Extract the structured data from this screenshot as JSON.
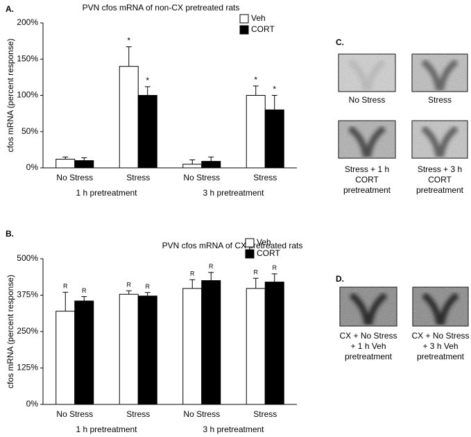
{
  "chart_data": [
    {
      "type": "bar",
      "label": "A.",
      "title": "PVN cfos mRNA of non-CX pretreated rats",
      "ylabel": "cfos mRNA (percent response)",
      "categories": [
        "No Stress",
        "Stress",
        "No Stress",
        "Stress"
      ],
      "group_labels": [
        "1 h pretreatment",
        "3 h pretreatment"
      ],
      "series": [
        {
          "name": "Veh",
          "color": "#ffffff",
          "edgecolor": "#000000",
          "values": [
            12,
            140,
            5,
            100
          ],
          "errors": [
            3,
            27,
            6,
            13
          ],
          "annotations": [
            null,
            "*",
            null,
            "*"
          ]
        },
        {
          "name": "CORT",
          "color": "#000000",
          "edgecolor": "#000000",
          "values": [
            10,
            100,
            9,
            80
          ],
          "errors": [
            4,
            12,
            6,
            20
          ],
          "annotations": [
            null,
            "*",
            null,
            "*"
          ]
        }
      ],
      "ylim": [
        0,
        200
      ],
      "yticks": [
        {
          "value": 0,
          "label": "0%"
        },
        {
          "value": 50,
          "label": "50%"
        },
        {
          "value": 100,
          "label": "100%"
        },
        {
          "value": 150,
          "label": "150%"
        },
        {
          "value": 200,
          "label": "200%"
        }
      ],
      "legend": "upper right"
    },
    {
      "type": "bar",
      "label": "B.",
      "title": "PVN cfos mRNA of CX pretreated rats",
      "ylabel": "cfos mRNA (percent response)",
      "categories": [
        "No Stress",
        "Stress",
        "No Stress",
        "Stress"
      ],
      "group_labels": [
        "1 h pretreatment",
        "3 h pretreatment"
      ],
      "series": [
        {
          "name": "Veh",
          "color": "#ffffff",
          "edgecolor": "#000000",
          "values": [
            320,
            378,
            398,
            398
          ],
          "errors": [
            65,
            12,
            30,
            35
          ],
          "annotations": [
            "R",
            "R",
            "R",
            "R"
          ]
        },
        {
          "name": "CORT",
          "color": "#000000",
          "edgecolor": "#000000",
          "values": [
            355,
            372,
            425,
            420
          ],
          "errors": [
            15,
            12,
            28,
            28
          ],
          "annotations": [
            "R",
            "R",
            "R",
            "R"
          ]
        }
      ],
      "ylim": [
        0,
        500
      ],
      "yticks": [
        {
          "value": 0,
          "label": "0%"
        },
        {
          "value": 125,
          "label": "125%"
        },
        {
          "value": 250,
          "label": "250%"
        },
        {
          "value": 375,
          "label": "375%"
        },
        {
          "value": 500,
          "label": "500%"
        }
      ],
      "legend": "upper right"
    }
  ],
  "images": [
    {
      "label": "C.",
      "captions": [
        [
          "No Stress"
        ],
        [
          "Stress"
        ],
        [
          "Stress + 1 h",
          "CORT",
          "pretreatment"
        ],
        [
          "Stress + 3 h",
          "CORT",
          "pretreatment"
        ]
      ]
    },
    {
      "label": "D.",
      "captions": [
        [
          "CX + No Stress",
          "+ 1 h Veh",
          "pretreatment"
        ],
        [
          "CX + No Stress",
          "+ 3 h Veh",
          "pretreatment"
        ]
      ]
    }
  ]
}
